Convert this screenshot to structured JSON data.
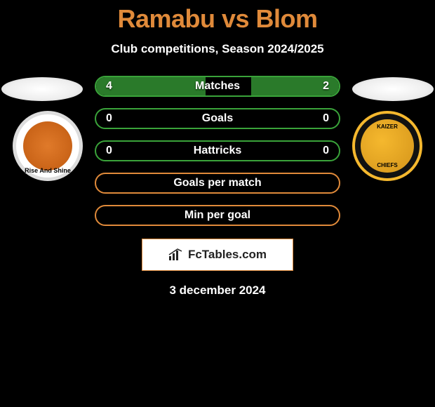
{
  "title": "Ramabu vs Blom",
  "subtitle": "Club competitions, Season 2024/2025",
  "date": "3 december 2024",
  "brand": "FcTables.com",
  "colors": {
    "accent": "#e08a3a",
    "green": "#2a7a2a",
    "green_border": "#3aa33a",
    "background": "#000000"
  },
  "badges": {
    "left": {
      "name": "Polokwane City FC",
      "motto": "Rise And Shine"
    },
    "right": {
      "name": "Kaizer Chiefs"
    }
  },
  "stats": [
    {
      "label": "Matches",
      "left_value": "4",
      "right_value": "2",
      "left_pct": 45,
      "right_pct": 36,
      "left_fill": "#2a7a2a",
      "right_fill": "#2a7a2a",
      "border": "#3aa33a"
    },
    {
      "label": "Goals",
      "left_value": "0",
      "right_value": "0",
      "left_pct": 0,
      "right_pct": 0,
      "left_fill": "#2a7a2a",
      "right_fill": "#2a7a2a",
      "border": "#3aa33a"
    },
    {
      "label": "Hattricks",
      "left_value": "0",
      "right_value": "0",
      "left_pct": 0,
      "right_pct": 0,
      "left_fill": "#2a7a2a",
      "right_fill": "#2a7a2a",
      "border": "#3aa33a"
    },
    {
      "label": "Goals per match",
      "left_value": "",
      "right_value": "",
      "left_pct": 0,
      "right_pct": 0,
      "left_fill": "#e08a3a",
      "right_fill": "#e08a3a",
      "border": "#e08a3a"
    },
    {
      "label": "Min per goal",
      "left_value": "",
      "right_value": "",
      "left_pct": 0,
      "right_pct": 0,
      "left_fill": "#e08a3a",
      "right_fill": "#e08a3a",
      "border": "#e08a3a"
    }
  ]
}
